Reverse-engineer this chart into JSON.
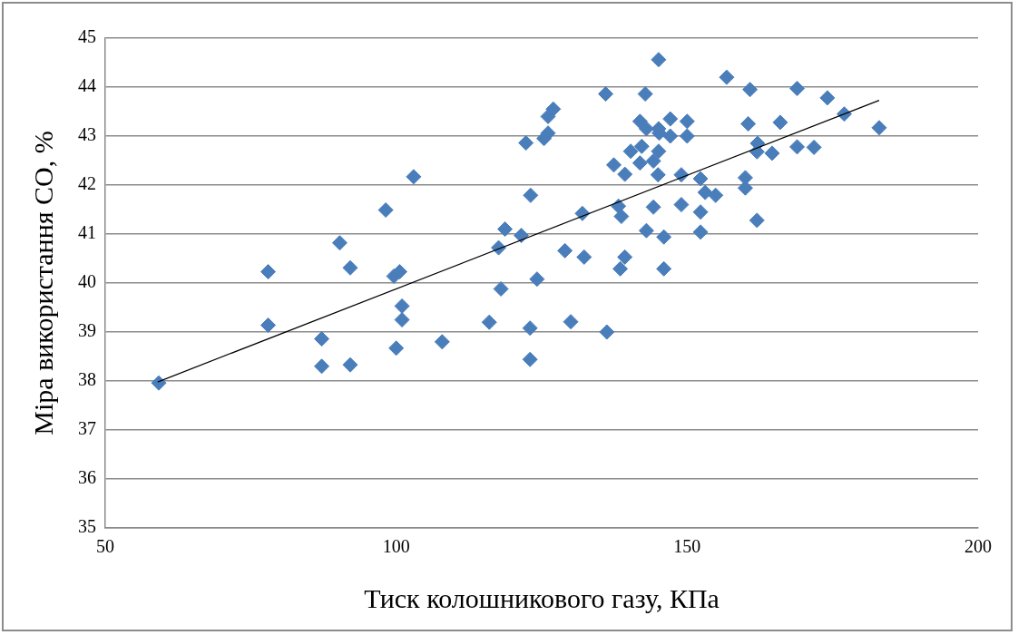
{
  "chart_data": {
    "type": "scatter",
    "xlabel": "Тиск колошникового газу, КПа",
    "ylabel": "Міра використання СО, %",
    "xlim": [
      50,
      200
    ],
    "xticks": [
      50,
      100,
      150,
      200
    ],
    "ylim": [
      35,
      45
    ],
    "yticks": [
      35,
      36,
      37,
      38,
      39,
      40,
      41,
      42,
      43,
      44,
      45
    ],
    "grid": "y",
    "legend": false,
    "marker": "diamond",
    "series": [
      {
        "type": "scatter",
        "color": "#4a7ebb",
        "x": [
          59.2,
          78,
          78,
          87.2,
          87.2,
          90.3,
          92.1,
          92.1,
          98.2,
          99.6,
          100.6,
          101,
          101,
          100,
          103,
          107.9,
          116,
          117.6,
          118,
          118.7,
          121.5,
          122.3,
          123.1,
          123,
          123,
          124.2,
          125.4,
          126.1,
          126.1,
          127,
          129,
          130,
          132,
          132.3,
          136,
          136.2,
          137.4,
          138.2,
          138.7,
          138.5,
          139.3,
          139.3,
          140.3,
          141.9,
          141.9,
          142.2,
          142.8,
          143,
          143,
          144.2,
          144.2,
          145,
          145.1,
          145.1,
          145.1,
          145.2,
          146,
          146,
          147.1,
          147.1,
          149,
          149,
          150,
          150,
          152.3,
          152.3,
          152.3,
          153.1,
          154.9,
          156.8,
          160,
          160,
          160.5,
          160.8,
          162,
          162,
          162.1,
          164.6,
          166,
          168.9,
          168.9,
          171.8,
          174.1,
          177,
          183
        ],
        "values": [
          37.96,
          40.23,
          39.14,
          38.86,
          38.3,
          40.82,
          40.31,
          38.33,
          41.49,
          40.14,
          40.23,
          39.53,
          39.25,
          38.67,
          42.17,
          38.8,
          39.2,
          40.72,
          39.88,
          41.1,
          40.97,
          42.86,
          41.79,
          39.08,
          38.44,
          40.08,
          42.95,
          43.06,
          43.4,
          43.55,
          40.66,
          39.21,
          41.42,
          40.53,
          43.86,
          39.0,
          42.41,
          41.57,
          41.36,
          40.29,
          42.22,
          40.53,
          42.69,
          43.3,
          42.45,
          42.79,
          43.86,
          43.15,
          41.07,
          42.49,
          41.55,
          42.21,
          43.15,
          42.69,
          44.56,
          43.06,
          40.94,
          40.29,
          43.35,
          43.0,
          42.21,
          41.6,
          43.3,
          43.0,
          42.13,
          41.45,
          41.04,
          41.85,
          41.79,
          44.2,
          42.15,
          41.94,
          43.25,
          43.95,
          42.68,
          41.28,
          42.85,
          42.65,
          43.28,
          43.97,
          42.78,
          42.77,
          43.78,
          43.45,
          43.17
        ]
      },
      {
        "type": "line",
        "color": "#000000",
        "marker": "none",
        "x": [
          59,
          183
        ],
        "values": [
          37.98,
          43.73
        ]
      }
    ]
  }
}
